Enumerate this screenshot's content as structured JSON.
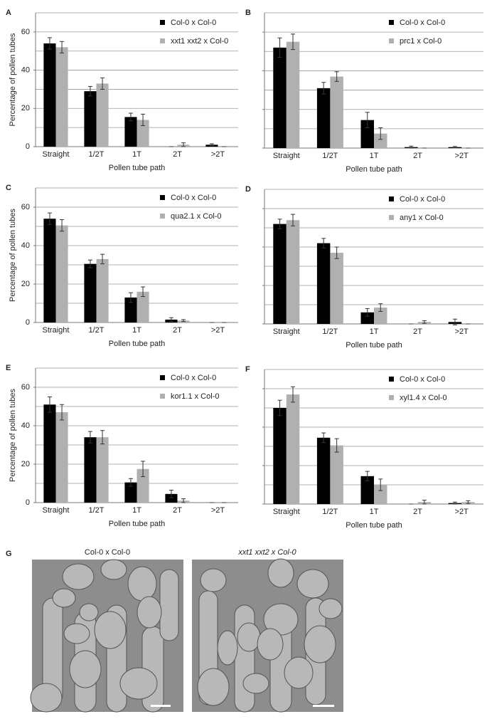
{
  "chart_data": [
    {
      "type": "bar",
      "panel": "A",
      "ylabel": "Percentage of pollen tubes",
      "xlabel": "Pollen tube path",
      "categories": [
        "Straight",
        "1/2T",
        "1T",
        "2T",
        ">2T"
      ],
      "series": [
        {
          "name": "Col-0 x Col-0",
          "color": "#000000",
          "values": [
            54,
            29,
            15.5,
            0,
            1
          ],
          "errors": [
            3,
            2.5,
            2,
            0,
            0.5
          ]
        },
        {
          "name": "xxt1 xxt2 x Col-0",
          "color": "#b0b0b0",
          "values": [
            52,
            33,
            14,
            1,
            0
          ],
          "errors": [
            3,
            3,
            3,
            1,
            0
          ]
        }
      ],
      "ylim": [
        0,
        70
      ],
      "yticks": [
        0,
        20,
        40,
        60
      ],
      "ygrid": [
        10,
        20,
        30,
        40,
        50,
        60,
        70
      ],
      "show_tick_labels": true
    },
    {
      "type": "bar",
      "panel": "B",
      "xlabel": "Pollen tube path",
      "categories": [
        "Straight",
        "1/2T",
        "1T",
        "2T",
        ">2T"
      ],
      "series": [
        {
          "name": "Col-0 x Col-0",
          "color": "#000000",
          "values": [
            52,
            31,
            14.5,
            0.5,
            0.5
          ],
          "errors": [
            5,
            3,
            4,
            0.5,
            0.3
          ]
        },
        {
          "name": "prc1 x Col-0",
          "color": "#b0b0b0",
          "values": [
            55,
            37,
            7.5,
            0,
            0
          ],
          "errors": [
            4,
            2.5,
            3,
            0,
            0
          ]
        }
      ],
      "ylim": [
        0,
        70
      ],
      "yticks": [
        0,
        20,
        40,
        60
      ],
      "ygrid": [
        10,
        20,
        30,
        40,
        50,
        60,
        70
      ],
      "show_tick_labels": false
    },
    {
      "type": "bar",
      "panel": "C",
      "ylabel": "Percentage of pollen tubes",
      "xlabel": "Pollen tube path",
      "categories": [
        "Straight",
        "1/2T",
        "1T",
        "2T",
        ">2T"
      ],
      "series": [
        {
          "name": "Col-0 x Col-0",
          "color": "#000000",
          "values": [
            54,
            30.5,
            13,
            1.5,
            0
          ],
          "errors": [
            3,
            2,
            2.5,
            1,
            0
          ]
        },
        {
          "name": "qua2.1 x Col-0",
          "color": "#b0b0b0",
          "values": [
            50.5,
            33,
            16,
            1,
            0
          ],
          "errors": [
            3,
            2.5,
            2.5,
            0.5,
            0
          ]
        }
      ],
      "ylim": [
        0,
        70
      ],
      "yticks": [
        0,
        20,
        40,
        60
      ],
      "ygrid": [
        10,
        20,
        30,
        40,
        50,
        60,
        70
      ],
      "show_tick_labels": true
    },
    {
      "type": "bar",
      "panel": "D",
      "xlabel": "Pollen tube path",
      "categories": [
        "Straight",
        "1/2T",
        "1T",
        "2T",
        ">2T"
      ],
      "series": [
        {
          "name": "Col-0 x Col-0",
          "color": "#000000",
          "values": [
            52,
            42,
            6,
            0,
            1
          ],
          "errors": [
            2.5,
            2.5,
            2,
            0,
            1.5
          ]
        },
        {
          "name": "any1 x Col-0",
          "color": "#b0b0b0",
          "values": [
            54,
            37,
            8.5,
            1,
            0
          ],
          "errors": [
            3,
            3,
            2,
            0.7,
            0
          ]
        }
      ],
      "ylim": [
        0,
        70
      ],
      "yticks": [
        0,
        20,
        40,
        60
      ],
      "ygrid": [
        10,
        20,
        30,
        40,
        50,
        60,
        70
      ],
      "show_tick_labels": false
    },
    {
      "type": "bar",
      "panel": "E",
      "ylabel": "Percentage of pollen tubes",
      "xlabel": "Pollen tube path",
      "categories": [
        "Straight",
        "1/2T",
        "1T",
        "2T",
        ">2T"
      ],
      "series": [
        {
          "name": "Col-0 x Col-0",
          "color": "#000000",
          "values": [
            51,
            34,
            10.5,
            4.5,
            0
          ],
          "errors": [
            4,
            3,
            2,
            2,
            0
          ]
        },
        {
          "name": "kor1.1 x Col-0",
          "color": "#b0b0b0",
          "values": [
            47,
            34,
            17.5,
            1,
            0
          ],
          "errors": [
            4,
            3.5,
            4,
            1,
            0
          ]
        }
      ],
      "ylim": [
        0,
        70
      ],
      "yticks": [
        0,
        20,
        40,
        60
      ],
      "ygrid": [
        10,
        20,
        30,
        40,
        50,
        60,
        70
      ],
      "show_tick_labels": true
    },
    {
      "type": "bar",
      "panel": "F",
      "xlabel": "Pollen tube path",
      "categories": [
        "Straight",
        "1/2T",
        "1T",
        "2T",
        ">2T"
      ],
      "series": [
        {
          "name": "Col-0 x Col-0",
          "color": "#000000",
          "values": [
            50,
            34.5,
            14.5,
            0,
            0.5
          ],
          "errors": [
            4,
            2.5,
            2.5,
            0,
            0.5
          ]
        },
        {
          "name": "xyl1.4 x Col-0",
          "color": "#b0b0b0",
          "values": [
            57,
            30.5,
            10,
            1,
            1
          ],
          "errors": [
            4,
            3.5,
            3,
            1,
            0.7
          ]
        }
      ],
      "ylim": [
        0,
        70
      ],
      "yticks": [
        0,
        20,
        40,
        60
      ],
      "ygrid": [
        10,
        20,
        30,
        40,
        50,
        60,
        70
      ],
      "show_tick_labels": false
    }
  ],
  "figure_g": {
    "panel": "G",
    "images": [
      {
        "caption": "Col-0 x Col-0"
      },
      {
        "caption": "xxt1 xxt2 x Col-0"
      }
    ]
  }
}
